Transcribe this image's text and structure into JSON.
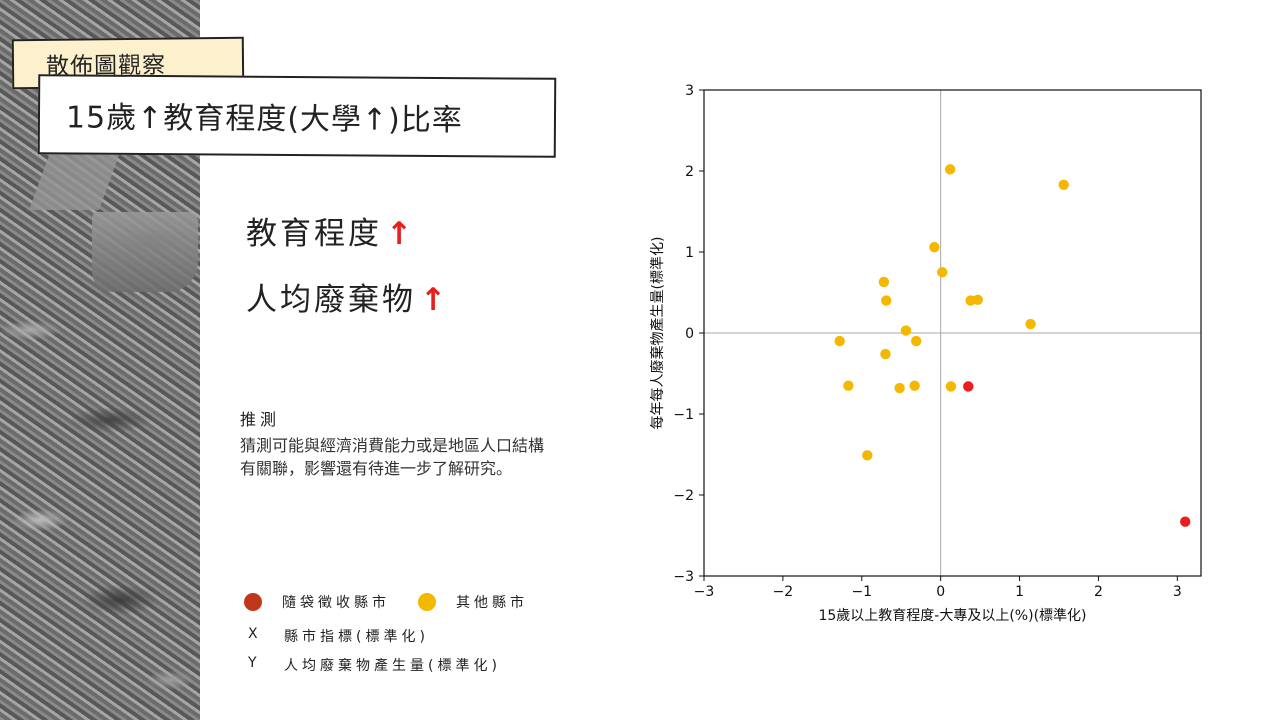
{
  "header": {
    "tag": "散佈圖觀察",
    "title": "15歲↑教育程度(大學↑)比率"
  },
  "headlines": [
    {
      "text": "教育程度",
      "arrow": "↑"
    },
    {
      "text": "人均廢棄物",
      "arrow": "↑"
    }
  ],
  "note": {
    "title": "推測",
    "body": "猜測可能與經濟消費能力或是地區人口結構有關聯，影響還有待進一步了解研究。"
  },
  "legend": {
    "items": [
      {
        "label": "隨袋徵收縣市",
        "color": "#c0381a"
      },
      {
        "label": "其他縣市",
        "color": "#f5b800"
      }
    ],
    "x_key": "X",
    "x_desc": "縣市指標(標準化)",
    "y_key": "Y",
    "y_desc": "人均廢棄物產生量(標準化)"
  },
  "colors": {
    "other": "#f5b800",
    "bag_fee": "#e8201d",
    "arrow": "#e8201d"
  },
  "chart_data": {
    "type": "scatter",
    "xlabel": "15歲以上教育程度-大專及以上(%)(標準化)",
    "ylabel": "每年每人廢棄物產生量(標準化)",
    "xlim": [
      -3,
      3.3
    ],
    "ylim": [
      -3,
      3
    ],
    "xticks": [
      -3,
      -2,
      -1,
      0,
      1,
      2,
      3
    ],
    "yticks": [
      -3,
      -2,
      -1,
      0,
      1,
      2,
      3
    ],
    "xtick_labels": [
      "−3",
      "−2",
      "−1",
      "0",
      "1",
      "2",
      "3"
    ],
    "ytick_labels": [
      "−3",
      "−2",
      "−1",
      "0",
      "1",
      "2",
      "3"
    ],
    "reference_lines": {
      "x": 0,
      "y": 0
    },
    "series": [
      {
        "points": [
          [
            0.12,
            2.02
          ],
          [
            1.56,
            1.83
          ],
          [
            -0.08,
            1.06
          ],
          [
            0.02,
            0.75
          ],
          [
            -0.72,
            0.63
          ],
          [
            -0.69,
            0.4
          ],
          [
            0.38,
            0.4
          ],
          [
            0.47,
            0.41
          ],
          [
            1.14,
            0.11
          ],
          [
            -0.44,
            0.03
          ],
          [
            -1.28,
            -0.1
          ],
          [
            -0.31,
            -0.1
          ],
          [
            -0.7,
            -0.26
          ],
          [
            -1.17,
            -0.65
          ],
          [
            -0.52,
            -0.68
          ],
          [
            -0.33,
            -0.65
          ],
          [
            0.13,
            -0.66
          ],
          [
            -0.93,
            -1.51
          ]
        ]
      },
      {
        "points": [
          [
            0.35,
            -0.66
          ],
          [
            3.1,
            -2.33
          ]
        ]
      }
    ]
  }
}
